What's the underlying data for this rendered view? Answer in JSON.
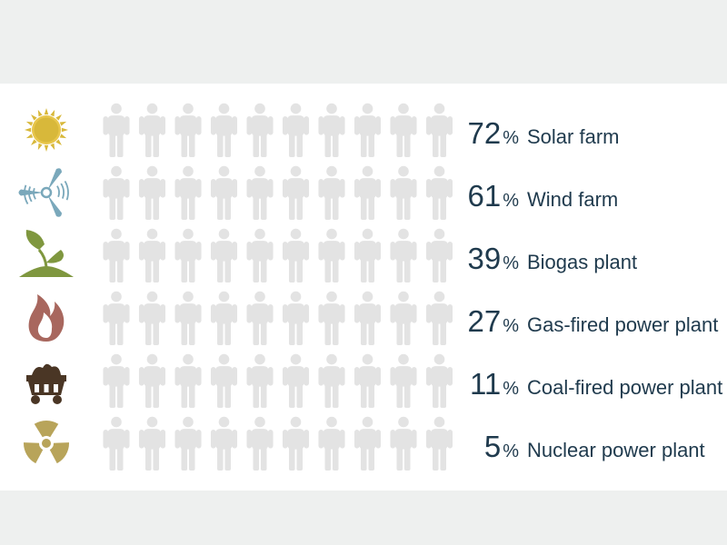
{
  "chart_data": {
    "type": "pictograph",
    "people_per_row": 10,
    "unit": "%",
    "empty_color": "#e3e3e3",
    "rows": [
      {
        "label": "Solar farm",
        "value": 72,
        "color": "#d8b83a",
        "icon": "sun-icon"
      },
      {
        "label": "Wind farm",
        "value": 61,
        "color": "#7aa8bb",
        "icon": "wind-turbine-icon"
      },
      {
        "label": "Biogas plant",
        "value": 39,
        "color": "#7f973f",
        "icon": "sprout-icon"
      },
      {
        "label": "Gas-fired power plant",
        "value": 27,
        "color": "#a8675e",
        "icon": "flame-icon"
      },
      {
        "label": "Coal-fired power plant",
        "value": 11,
        "color": "#4a3625",
        "icon": "coal-cart-icon"
      },
      {
        "label": "Nuclear power plant",
        "value": 5,
        "color": "#b8a45a",
        "icon": "radiation-icon"
      }
    ]
  }
}
